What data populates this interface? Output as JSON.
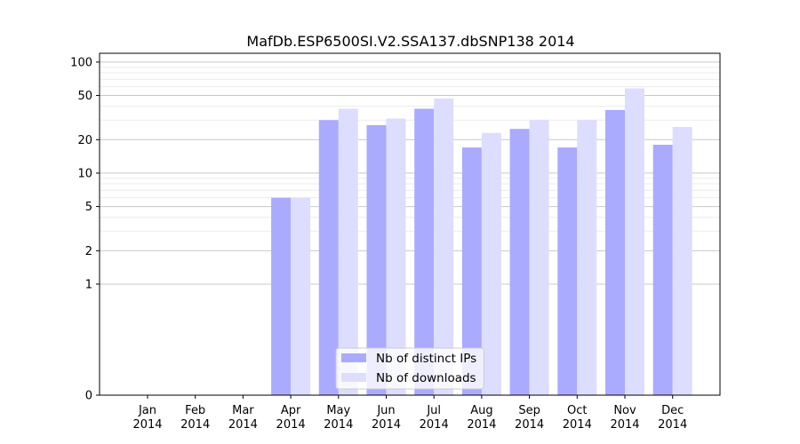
{
  "chart_data": {
    "type": "bar",
    "title": "MafDb.ESP6500SI.V2.SSA137.dbSNP138 2014",
    "xlabel": "",
    "ylabel": "",
    "y_scale": "symlog",
    "ylim": [
      0,
      120
    ],
    "y_ticks": [
      0,
      1,
      2,
      5,
      10,
      20,
      50,
      100
    ],
    "y_tick_labels": [
      "0",
      "1",
      "2",
      "5",
      "10",
      "20",
      "50",
      "100"
    ],
    "grid": "horizontal",
    "legend_position": "lower-center",
    "categories": [
      {
        "month": "Jan",
        "year": "2014"
      },
      {
        "month": "Feb",
        "year": "2014"
      },
      {
        "month": "Mar",
        "year": "2014"
      },
      {
        "month": "Apr",
        "year": "2014"
      },
      {
        "month": "May",
        "year": "2014"
      },
      {
        "month": "Jun",
        "year": "2014"
      },
      {
        "month": "Jul",
        "year": "2014"
      },
      {
        "month": "Aug",
        "year": "2014"
      },
      {
        "month": "Sep",
        "year": "2014"
      },
      {
        "month": "Oct",
        "year": "2014"
      },
      {
        "month": "Nov",
        "year": "2014"
      },
      {
        "month": "Dec",
        "year": "2014"
      }
    ],
    "series": [
      {
        "name": "Nb of distinct IPs",
        "color": "#aaaaff",
        "values": [
          0,
          0,
          0,
          6,
          30,
          27,
          38,
          17,
          25,
          17,
          37,
          18
        ]
      },
      {
        "name": "Nb of downloads",
        "color": "#ddddff",
        "values": [
          0,
          0,
          0,
          6,
          38,
          31,
          47,
          23,
          30,
          30,
          58,
          26
        ]
      }
    ]
  }
}
